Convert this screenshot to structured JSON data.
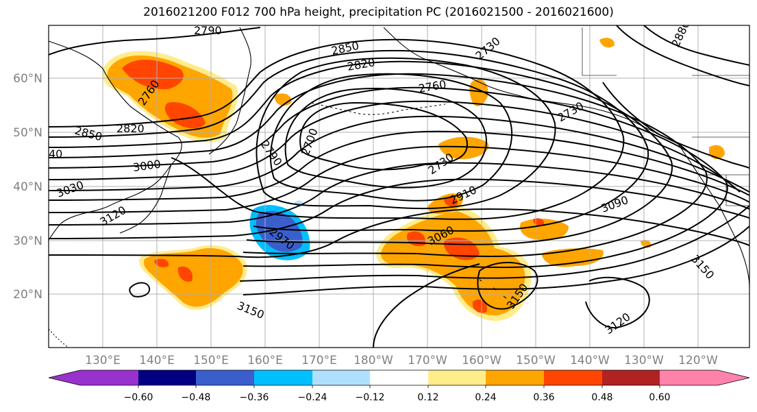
{
  "map": {
    "title": "2016021200 F012 700 hPa height, precipitation PC (2016021500 - 2016021600)",
    "lat_labels": [
      "60°N",
      "50°N",
      "40°N",
      "30°N",
      "20°N"
    ],
    "lon_labels": [
      "130°E",
      "140°E",
      "150°E",
      "160°E",
      "170°E",
      "180°W",
      "170°W",
      "160°W",
      "150°W",
      "140°W",
      "130°W",
      "120°W"
    ],
    "contour_labels": [
      "2790",
      "2850",
      "2820",
      "2730",
      "2760",
      "2760",
      "2850",
      "2820",
      "2700",
      "2730",
      "2730",
      "2790",
      "40",
      "3000",
      "3030",
      "2970",
      "2910",
      "3060",
      "3090",
      "3150",
      "3150",
      "3120",
      "3150",
      "2880",
      "3120"
    ],
    "contour_color": "#000000",
    "precip_colors": {
      "light_yellow": "#ffec8b",
      "orange": "#ffa500",
      "red_orange": "#ff4500",
      "light_blue": "#b0e0ff",
      "sky_blue": "#00bfff",
      "royal_blue": "#3a5fcd"
    }
  },
  "colorbar": {
    "tick_labels": [
      "−0.60",
      "−0.48",
      "−0.36",
      "−0.24",
      "−0.12",
      "0.12",
      "0.24",
      "0.36",
      "0.48",
      "0.60"
    ],
    "under_color": "#9932cc",
    "colors": [
      "#9932cc",
      "#000080",
      "#3a5fcd",
      "#00bfff",
      "#b0e0ff",
      "#ffffff",
      "#ffec8b",
      "#ffa500",
      "#ff4500",
      "#b22222",
      "#ff82ab"
    ],
    "over_color": "#ff82ab"
  }
}
